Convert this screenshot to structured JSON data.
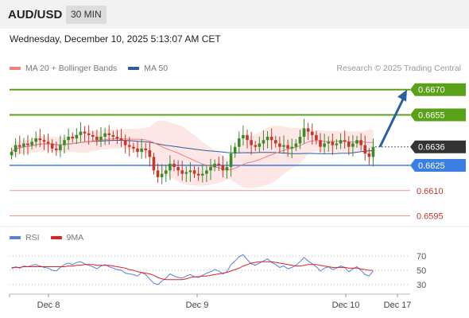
{
  "header": {
    "pair": "AUD/USD",
    "timeframe": "30 MIN",
    "timestamp": "Wednesday, December 10, 2025 5:13:07 AM CET"
  },
  "legend": {
    "ma20_label": "MA 20 + Bollinger Bands",
    "ma20_color": "#f08080",
    "ma50_label": "MA 50",
    "ma50_color": "#2e5c9a",
    "credit": "Research © 2025 Trading Central"
  },
  "rsi_legend": {
    "rsi_label": "RSI",
    "rsi_color": "#5b7fd6",
    "ma_label": "9MA",
    "ma_color": "#e02020"
  },
  "colors": {
    "resistance": "#5aa019",
    "pivot": "#3d7fe0",
    "support": "#f09090",
    "current": "#333333",
    "arrow": "#2c5f9e",
    "candle_up": "#3a8a2a",
    "candle_down": "#c0392b",
    "band_fill": "#fde3e3"
  },
  "chart_data": [
    {
      "type": "candlestick",
      "title": "",
      "ylim": [
        0.6591,
        0.6676
      ],
      "x_ticks": [
        "Dec 8",
        "Dec 9",
        "Dec 10",
        "Dec 17"
      ],
      "levels": [
        {
          "value": 0.667,
          "label": "0.6670",
          "kind": "resistance"
        },
        {
          "value": 0.6655,
          "label": "0.6655",
          "kind": "resistance"
        },
        {
          "value": 0.6636,
          "label": "0.6636",
          "kind": "current"
        },
        {
          "value": 0.6625,
          "label": "0.6625",
          "kind": "pivot"
        },
        {
          "value": 0.661,
          "label": "0.6610",
          "kind": "support"
        },
        {
          "value": 0.6595,
          "label": "0.6595",
          "kind": "support"
        }
      ],
      "close_series": [
        0.6633,
        0.6637,
        0.6636,
        0.6638,
        0.6637,
        0.6639,
        0.6641,
        0.664,
        0.6639,
        0.6638,
        0.6635,
        0.6634,
        0.6637,
        0.664,
        0.6642,
        0.6641,
        0.6643,
        0.6645,
        0.6644,
        0.6643,
        0.6642,
        0.664,
        0.6642,
        0.6644,
        0.6643,
        0.6642,
        0.6641,
        0.664,
        0.6637,
        0.6636,
        0.6635,
        0.6633,
        0.6635,
        0.6634,
        0.663,
        0.6622,
        0.6618,
        0.662,
        0.6622,
        0.6626,
        0.6624,
        0.6622,
        0.662,
        0.6621,
        0.6622,
        0.662,
        0.6619,
        0.662,
        0.6622,
        0.6624,
        0.6626,
        0.6625,
        0.6622,
        0.6624,
        0.6632,
        0.6636,
        0.6641,
        0.6643,
        0.664,
        0.6637,
        0.6636,
        0.6638,
        0.664,
        0.6642,
        0.664,
        0.6638,
        0.6636,
        0.6637,
        0.6635,
        0.6636,
        0.6638,
        0.6642,
        0.6647,
        0.6645,
        0.6643,
        0.664,
        0.6636,
        0.6638,
        0.6639,
        0.6637,
        0.6638,
        0.664,
        0.6639,
        0.6636,
        0.6638,
        0.664,
        0.6637,
        0.6632,
        0.663,
        0.6636
      ],
      "forecast_target": 0.667
    },
    {
      "type": "line",
      "title": "",
      "ylim": [
        20,
        80
      ],
      "y_ticks": [
        70,
        50,
        30
      ],
      "x_ticks": [
        "Dec 8",
        "Dec 9",
        "Dec 10",
        "Dec 17"
      ],
      "series": [
        {
          "name": "RSI",
          "values": [
            52,
            55,
            53,
            56,
            55,
            57,
            58,
            56,
            54,
            53,
            50,
            49,
            54,
            58,
            60,
            58,
            61,
            62,
            59,
            57,
            55,
            52,
            56,
            58,
            55,
            53,
            51,
            50,
            46,
            45,
            44,
            42,
            47,
            44,
            38,
            32,
            30,
            35,
            39,
            45,
            42,
            40,
            39,
            42,
            44,
            41,
            40,
            43,
            46,
            48,
            51,
            49,
            45,
            48,
            58,
            63,
            69,
            72,
            65,
            59,
            57,
            60,
            63,
            66,
            61,
            58,
            54,
            56,
            52,
            54,
            57,
            62,
            68,
            63,
            59,
            55,
            49,
            53,
            55,
            51,
            53,
            56,
            54,
            48,
            52,
            55,
            50,
            44,
            42,
            49
          ]
        },
        {
          "name": "9MA",
          "values": [
            54,
            54,
            54,
            55,
            55,
            55,
            55,
            55,
            55,
            55,
            55,
            55,
            55,
            55,
            56,
            56,
            57,
            57,
            58,
            58,
            58,
            57,
            57,
            57,
            57,
            56,
            55,
            54,
            53,
            51,
            50,
            48,
            47,
            46,
            45,
            43,
            40,
            38,
            37,
            37,
            37,
            37,
            37,
            38,
            40,
            41,
            41,
            42,
            42,
            43,
            44,
            45,
            46,
            47,
            49,
            51,
            53,
            56,
            58,
            60,
            61,
            62,
            62,
            62,
            62,
            61,
            60,
            59,
            58,
            57,
            56,
            56,
            57,
            58,
            58,
            58,
            57,
            56,
            55,
            54,
            54,
            54,
            54,
            53,
            53,
            53,
            52,
            51,
            50,
            50
          ]
        }
      ]
    }
  ]
}
